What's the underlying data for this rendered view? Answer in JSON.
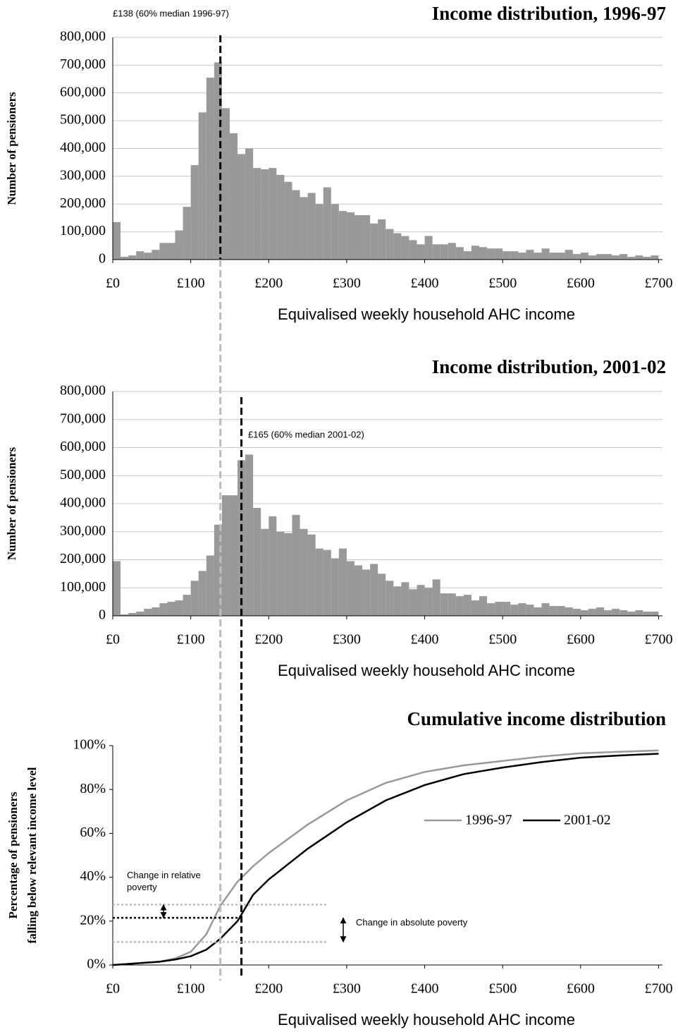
{
  "chart_data": [
    {
      "type": "histogram",
      "title": "Income distribution, 1996-97",
      "x_label": "Equivalised weekly household AHC income",
      "y_label": "Number of pensioners",
      "color": "#999999",
      "grid": true,
      "bins": [
        0,
        10,
        20,
        30,
        40,
        50,
        60,
        70,
        80,
        90,
        100,
        110,
        120,
        130,
        140,
        150,
        160,
        170,
        180,
        190,
        200,
        210,
        220,
        230,
        240,
        250,
        260,
        270,
        280,
        290,
        300,
        310,
        320,
        330,
        340,
        350,
        360,
        370,
        380,
        390,
        400,
        410,
        420,
        430,
        440,
        450,
        460,
        470,
        480,
        490,
        500,
        510,
        520,
        530,
        540,
        550,
        560,
        570,
        580,
        590,
        600,
        610,
        620,
        630,
        640,
        650,
        660,
        670,
        680,
        690,
        700
      ],
      "values": [
        135000,
        10000,
        15000,
        30000,
        25000,
        35000,
        60000,
        60000,
        105000,
        190000,
        340000,
        530000,
        655000,
        710000,
        545000,
        455000,
        380000,
        400000,
        330000,
        325000,
        330000,
        305000,
        280000,
        250000,
        225000,
        240000,
        200000,
        260000,
        200000,
        175000,
        170000,
        160000,
        160000,
        130000,
        145000,
        110000,
        95000,
        85000,
        70000,
        55000,
        85000,
        55000,
        55000,
        60000,
        45000,
        30000,
        50000,
        45000,
        40000,
        40000,
        30000,
        30000,
        25000,
        35000,
        25000,
        40000,
        25000,
        25000,
        35000,
        20000,
        25000,
        15000,
        20000,
        20000,
        15000,
        20000,
        10000,
        15000,
        10000,
        15000
      ],
      "xlim": [
        0,
        705
      ],
      "ylim": [
        0,
        800000
      ],
      "xticks": [
        {
          "value": 0,
          "label": "£0"
        },
        {
          "value": 100,
          "label": "£100"
        },
        {
          "value": 200,
          "label": "£200"
        },
        {
          "value": 300,
          "label": "£300"
        },
        {
          "value": 400,
          "label": "£400"
        },
        {
          "value": 500,
          "label": "£500"
        },
        {
          "value": 600,
          "label": "£600"
        },
        {
          "value": 700,
          "label": "£700"
        }
      ],
      "yticks": [
        0,
        {
          "value": 100000,
          "label": "100,000"
        },
        {
          "value": 200000,
          "label": "200,000"
        },
        {
          "value": 300000,
          "label": "300,000"
        },
        {
          "value": 400000,
          "label": "400,000"
        },
        {
          "value": 500000,
          "label": "500,000"
        },
        {
          "value": 600000,
          "label": "600,000"
        },
        {
          "value": 700000,
          "label": "700,000"
        },
        {
          "value": 800000,
          "label": "800,000"
        }
      ],
      "median_line": {
        "value": 138,
        "label": "£138 (60% median 1996-97)",
        "color": "#000000",
        "extension_color": "#bbbbbb"
      }
    },
    {
      "type": "histogram",
      "title": "Income distribution, 2001-02",
      "x_label": "Equivalised weekly household AHC income",
      "y_label": "Number of pensioners",
      "color": "#999999",
      "grid": true,
      "bins": [
        0,
        10,
        20,
        30,
        40,
        50,
        60,
        70,
        80,
        90,
        100,
        110,
        120,
        130,
        140,
        150,
        160,
        170,
        180,
        190,
        200,
        210,
        220,
        230,
        240,
        250,
        260,
        270,
        280,
        290,
        300,
        310,
        320,
        330,
        340,
        350,
        360,
        370,
        380,
        390,
        400,
        410,
        420,
        430,
        440,
        450,
        460,
        470,
        480,
        490,
        500,
        510,
        520,
        530,
        540,
        550,
        560,
        570,
        580,
        590,
        600,
        610,
        620,
        630,
        640,
        650,
        660,
        670,
        680,
        690,
        700
      ],
      "values": [
        195000,
        5000,
        10000,
        15000,
        25000,
        30000,
        45000,
        50000,
        55000,
        75000,
        125000,
        160000,
        215000,
        325000,
        430000,
        430000,
        555000,
        575000,
        385000,
        310000,
        355000,
        300000,
        295000,
        360000,
        310000,
        290000,
        240000,
        235000,
        205000,
        240000,
        195000,
        180000,
        165000,
        185000,
        150000,
        125000,
        105000,
        120000,
        95000,
        110000,
        100000,
        130000,
        80000,
        80000,
        70000,
        75000,
        55000,
        70000,
        45000,
        50000,
        50000,
        40000,
        45000,
        40000,
        30000,
        45000,
        35000,
        35000,
        30000,
        25000,
        20000,
        25000,
        30000,
        20000,
        25000,
        20000,
        15000,
        20000,
        15000,
        15000
      ],
      "xlim": [
        0,
        705
      ],
      "ylim": [
        0,
        800000
      ],
      "xticks": [
        {
          "value": 0,
          "label": "£0"
        },
        {
          "value": 100,
          "label": "£100"
        },
        {
          "value": 200,
          "label": "£200"
        },
        {
          "value": 300,
          "label": "£300"
        },
        {
          "value": 400,
          "label": "£400"
        },
        {
          "value": 500,
          "label": "£500"
        },
        {
          "value": 600,
          "label": "£600"
        },
        {
          "value": 700,
          "label": "£700"
        }
      ],
      "yticks": [
        0,
        {
          "value": 100000,
          "label": "100,000"
        },
        {
          "value": 200000,
          "label": "200,000"
        },
        {
          "value": 300000,
          "label": "300,000"
        },
        {
          "value": 400000,
          "label": "400,000"
        },
        {
          "value": 500000,
          "label": "500,000"
        },
        {
          "value": 600000,
          "label": "600,000"
        },
        {
          "value": 700000,
          "label": "700,000"
        },
        {
          "value": 800000,
          "label": "800,000"
        }
      ],
      "median_line": {
        "value": 165,
        "label": "£165 (60% median 2001-02)",
        "color": "#000000"
      }
    },
    {
      "type": "line",
      "title": "Cumulative income distribution",
      "x_label": "Equivalised weekly household AHC income",
      "y_label": [
        "Percentage of pensioners",
        "falling below relevant income level"
      ],
      "grid": false,
      "x": [
        0,
        20,
        40,
        60,
        80,
        100,
        120,
        138,
        160,
        180,
        200,
        250,
        300,
        350,
        400,
        450,
        500,
        550,
        600,
        650,
        700
      ],
      "series": [
        {
          "name": "1996-97",
          "color": "#999999",
          "values": [
            0,
            0.5,
            1,
            1.5,
            3,
            6,
            14,
            27,
            38,
            45,
            51,
            64,
            75,
            83,
            88,
            91,
            93,
            95,
            96.5,
            97.2,
            97.8
          ]
        },
        {
          "name": "2001-02",
          "color": "#000000",
          "values": [
            0,
            0.5,
            1,
            1.5,
            2.5,
            4,
            7,
            12,
            20,
            32,
            39,
            53,
            65,
            75,
            82,
            87,
            90,
            92.5,
            94.5,
            95.5,
            96.3
          ]
        }
      ],
      "xlim": [
        0,
        705
      ],
      "ylim": [
        0,
        100
      ],
      "xticks": [
        {
          "value": 0,
          "label": "£0"
        },
        {
          "value": 100,
          "label": "£100"
        },
        {
          "value": 200,
          "label": "£200"
        },
        {
          "value": 300,
          "label": "£300"
        },
        {
          "value": 400,
          "label": "£400"
        },
        {
          "value": 500,
          "label": "£500"
        },
        {
          "value": 600,
          "label": "£600"
        },
        {
          "value": 700,
          "label": "£700"
        }
      ],
      "yticks": [
        {
          "value": 0,
          "label": "0%"
        },
        {
          "value": 20,
          "label": "20%"
        },
        {
          "value": 40,
          "label": "40%"
        },
        {
          "value": 60,
          "label": "60%"
        },
        {
          "value": 80,
          "label": "80%"
        },
        {
          "value": 100,
          "label": "100%"
        }
      ],
      "poverty_levels": [
        {
          "value": 27.5,
          "to_x": 275,
          "color": "#bbbbbb"
        },
        {
          "value": 21.5,
          "to_x": 165,
          "color": "#000000"
        },
        {
          "value": 10.5,
          "to_x": 275,
          "color": "#bbbbbb"
        }
      ],
      "annotations": [
        "Change in relative poverty",
        "Change in absolute poverty"
      ]
    }
  ]
}
